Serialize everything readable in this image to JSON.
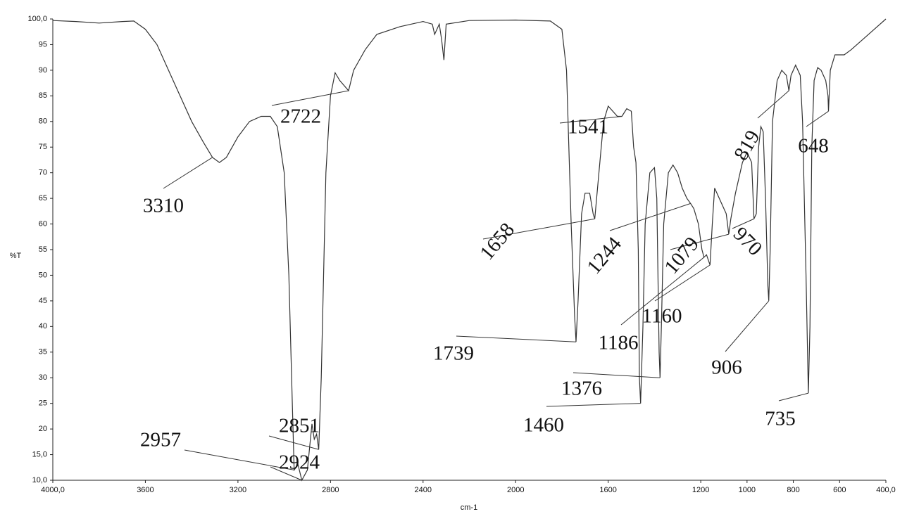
{
  "chart_data": {
    "type": "line",
    "xlabel": "cm-1",
    "ylabel": "%T",
    "xlim": [
      4000,
      400
    ],
    "ylim": [
      10,
      100
    ],
    "xticks": [
      {
        "value": 4000,
        "label": "4000,0"
      },
      3600,
      3200,
      2800,
      2400,
      2000,
      1600,
      1200,
      1000,
      800,
      600,
      {
        "value": 400,
        "label": "400,0"
      }
    ],
    "yticks": [
      {
        "value": 10,
        "label": "10,0"
      },
      {
        "value": 15,
        "label": "15,0"
      },
      20,
      25,
      30,
      35,
      40,
      45,
      50,
      55,
      60,
      65,
      70,
      75,
      80,
      85,
      90,
      95,
      {
        "value": 100,
        "label": "100,0"
      }
    ],
    "series": [
      {
        "color": "#333333",
        "x": [
          4000,
          3900,
          3800,
          3700,
          3650,
          3600,
          3550,
          3500,
          3450,
          3400,
          3350,
          3310,
          3280,
          3250,
          3200,
          3150,
          3100,
          3060,
          3030,
          3000,
          2980,
          2965,
          2957,
          2940,
          2924,
          2900,
          2880,
          2870,
          2860,
          2851,
          2840,
          2820,
          2800,
          2780,
          2760,
          2722,
          2700,
          2650,
          2600,
          2500,
          2400,
          2360,
          2350,
          2330,
          2320,
          2310,
          2300,
          2200,
          2000,
          1850,
          1800,
          1780,
          1760,
          1745,
          1739,
          1730,
          1715,
          1700,
          1680,
          1665,
          1658,
          1640,
          1620,
          1600,
          1580,
          1560,
          1541,
          1520,
          1500,
          1490,
          1480,
          1470,
          1465,
          1460,
          1450,
          1440,
          1420,
          1400,
          1390,
          1380,
          1376,
          1370,
          1360,
          1340,
          1320,
          1300,
          1280,
          1260,
          1244,
          1230,
          1210,
          1195,
          1186,
          1175,
          1160,
          1150,
          1140,
          1130,
          1110,
          1090,
          1079,
          1070,
          1050,
          1020,
          1000,
          980,
          970,
          960,
          950,
          940,
          930,
          920,
          910,
          906,
          900,
          890,
          870,
          850,
          830,
          819,
          810,
          790,
          770,
          760,
          745,
          735,
          728,
          720,
          710,
          695,
          680,
          660,
          650,
          648,
          640,
          620,
          580,
          550,
          500,
          450,
          400
        ],
        "values": [
          99.7,
          99.5,
          99.2,
          99.5,
          99.6,
          98,
          95,
          90,
          85,
          80,
          76,
          73,
          72,
          73,
          77,
          80,
          81,
          81,
          79,
          70,
          50,
          25,
          12,
          13,
          10,
          12,
          21,
          18,
          19,
          16,
          30,
          70,
          85,
          89.5,
          88,
          86,
          90,
          94,
          97,
          98.5,
          99.5,
          99,
          97,
          99,
          96,
          92,
          99,
          99.7,
          99.8,
          99.6,
          98,
          90,
          60,
          42,
          37,
          45,
          62,
          66,
          66,
          62,
          61,
          70,
          80,
          83,
          82,
          81,
          81,
          82.5,
          82,
          75,
          72,
          55,
          30,
          25,
          40,
          60,
          70,
          71,
          65,
          35,
          30,
          40,
          60,
          70,
          71.5,
          70,
          67,
          65,
          64,
          63,
          60,
          55,
          53.5,
          54,
          52,
          60,
          67,
          66,
          64,
          62,
          58,
          61,
          66,
          72,
          74,
          72,
          61,
          62,
          75,
          79,
          78,
          65,
          48,
          45,
          55,
          80,
          88,
          90,
          89,
          86,
          89,
          91,
          89,
          80,
          50,
          27,
          40,
          75,
          88,
          90.5,
          90,
          88,
          85,
          82,
          90,
          93,
          93,
          94,
          96,
          98,
          100
        ]
      }
    ],
    "annotations": [
      "3310",
      "2722",
      "2957",
      "2851",
      "2924",
      "1739",
      "1658",
      "1541",
      "1460",
      "1376",
      "1244",
      "1186",
      "1160",
      "1079",
      "970",
      "906",
      "735",
      "819",
      "648"
    ]
  }
}
